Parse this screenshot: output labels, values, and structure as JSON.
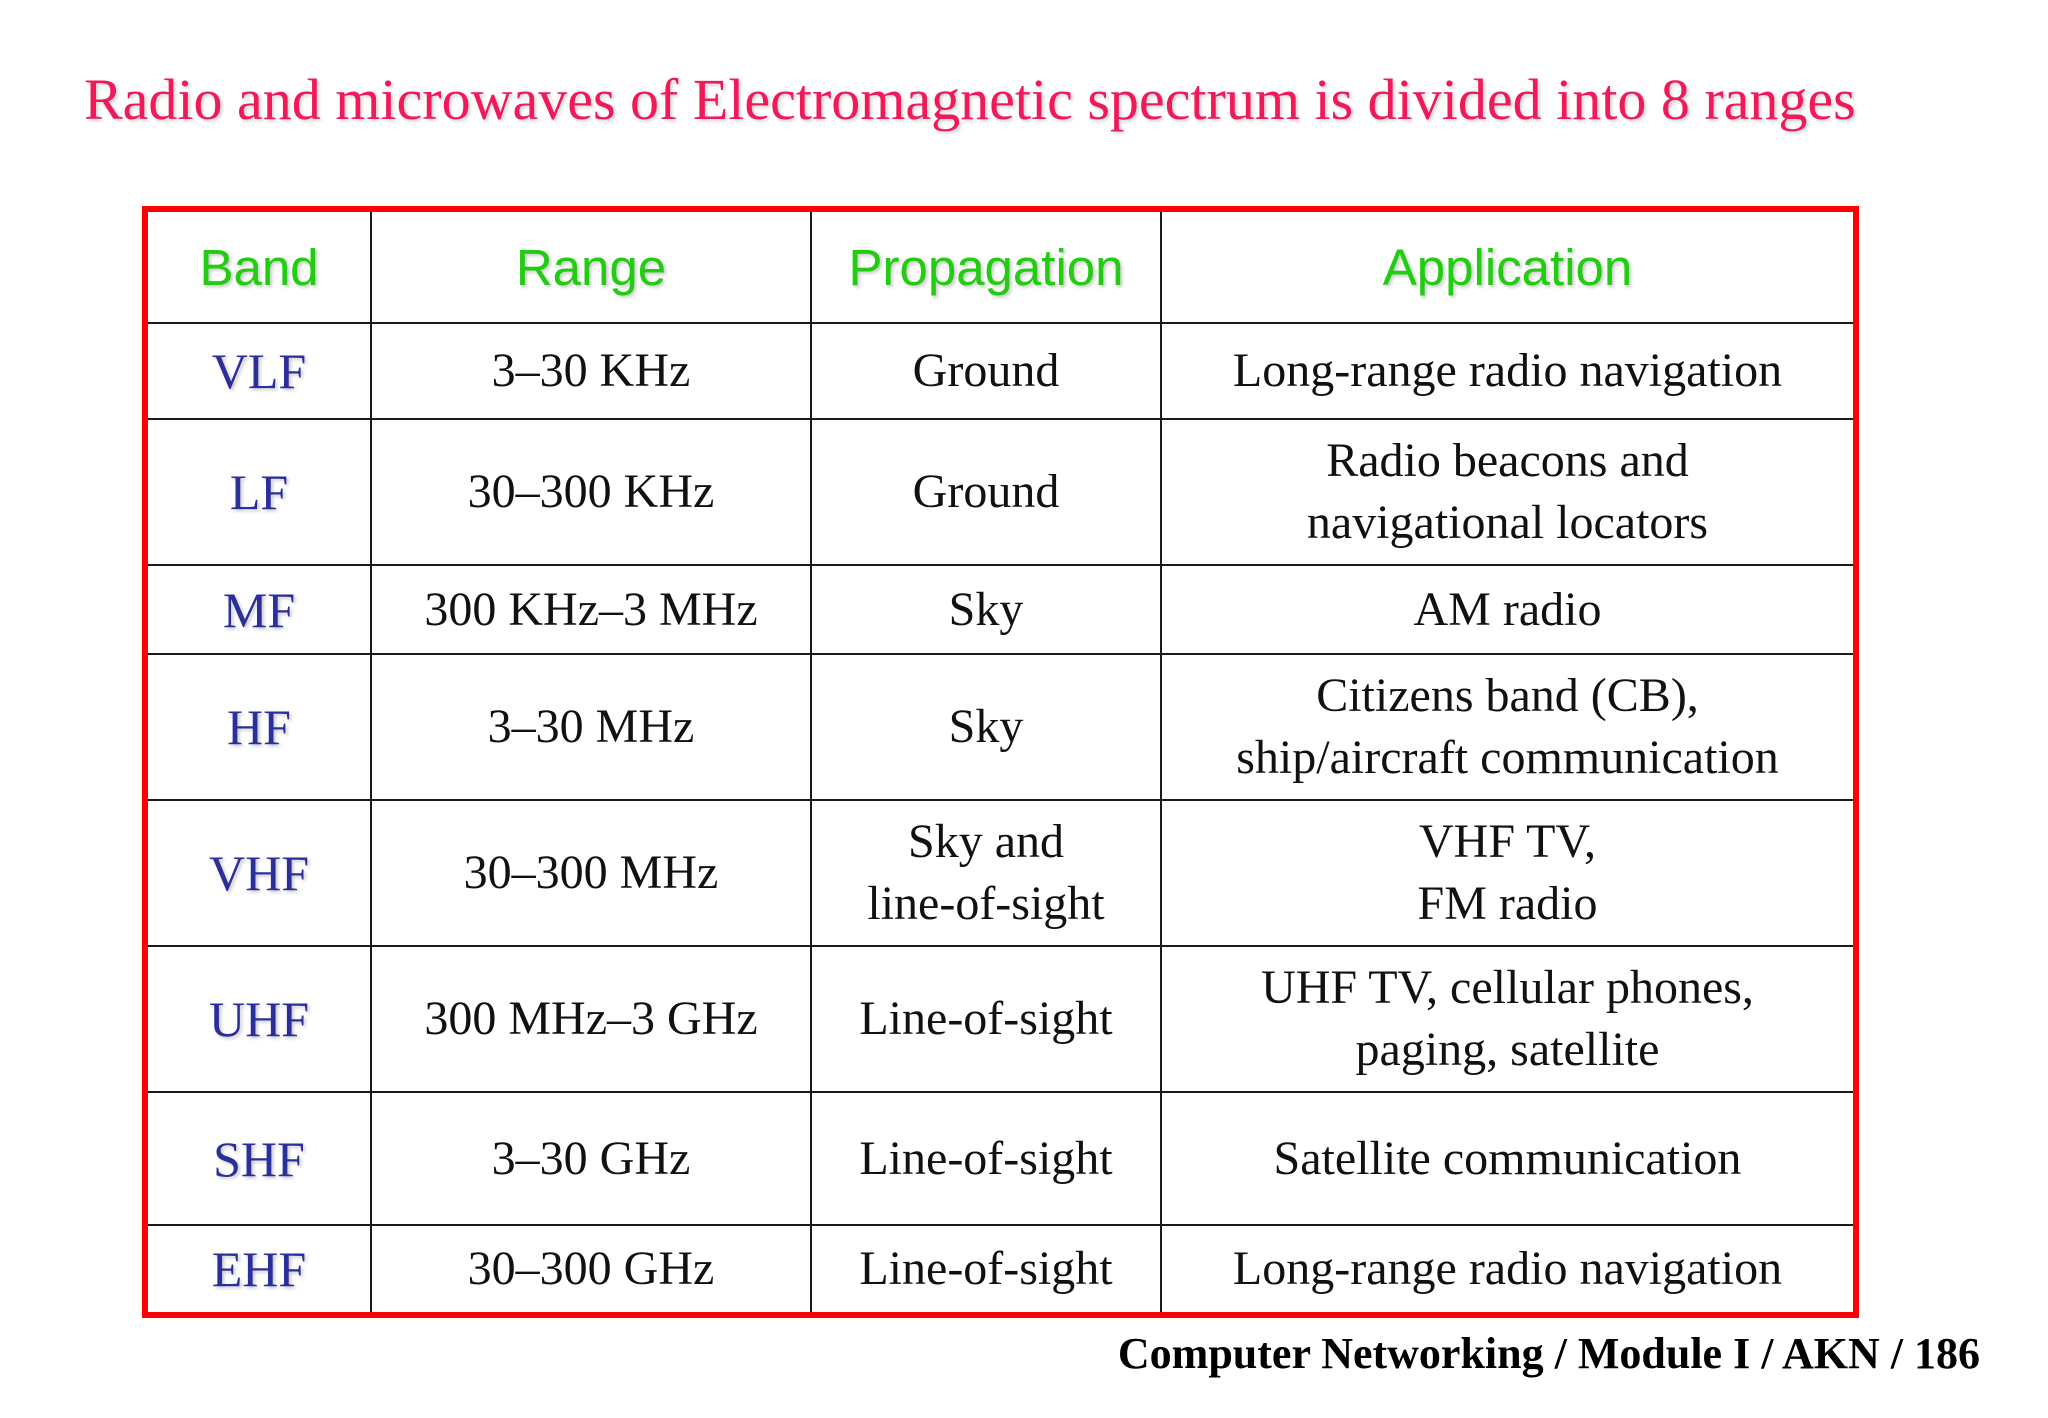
{
  "title": "Radio and microwaves of Electromagnetic spectrum is divided into 8 ranges",
  "colors": {
    "title": "#f0195a",
    "frame": "#ff0000",
    "header_text": "#22cc11",
    "band_text": "#2b2f9b"
  },
  "table": {
    "headers": {
      "band": "Band",
      "range": "Range",
      "propagation": "Propagation",
      "application": "Application"
    },
    "rows": [
      {
        "band": "VLF",
        "range": "3–30 KHz",
        "propagation": "Ground",
        "application": "Long-range radio navigation"
      },
      {
        "band": "LF",
        "range": "30–300 KHz",
        "propagation": "Ground",
        "application": "Radio beacons and\nnavigational locators"
      },
      {
        "band": "MF",
        "range": "300 KHz–3 MHz",
        "propagation": "Sky",
        "application": "AM radio"
      },
      {
        "band": "HF",
        "range": "3–30 MHz",
        "propagation": "Sky",
        "application": "Citizens band (CB),\nship/aircraft communication"
      },
      {
        "band": "VHF",
        "range": "30–300 MHz",
        "propagation": "Sky and\nline-of-sight",
        "application": "VHF TV,\nFM radio"
      },
      {
        "band": "UHF",
        "range": "300 MHz–3 GHz",
        "propagation": "Line-of-sight",
        "application": "UHF TV, cellular phones,\npaging, satellite"
      },
      {
        "band": "SHF",
        "range": "3–30 GHz",
        "propagation": "Line-of-sight",
        "application": "Satellite communication"
      },
      {
        "band": "EHF",
        "range": "30–300 GHz",
        "propagation": "Line-of-sight",
        "application": "Long-range radio navigation"
      }
    ]
  },
  "footer": "Computer Networking / Module I / AKN / 186"
}
